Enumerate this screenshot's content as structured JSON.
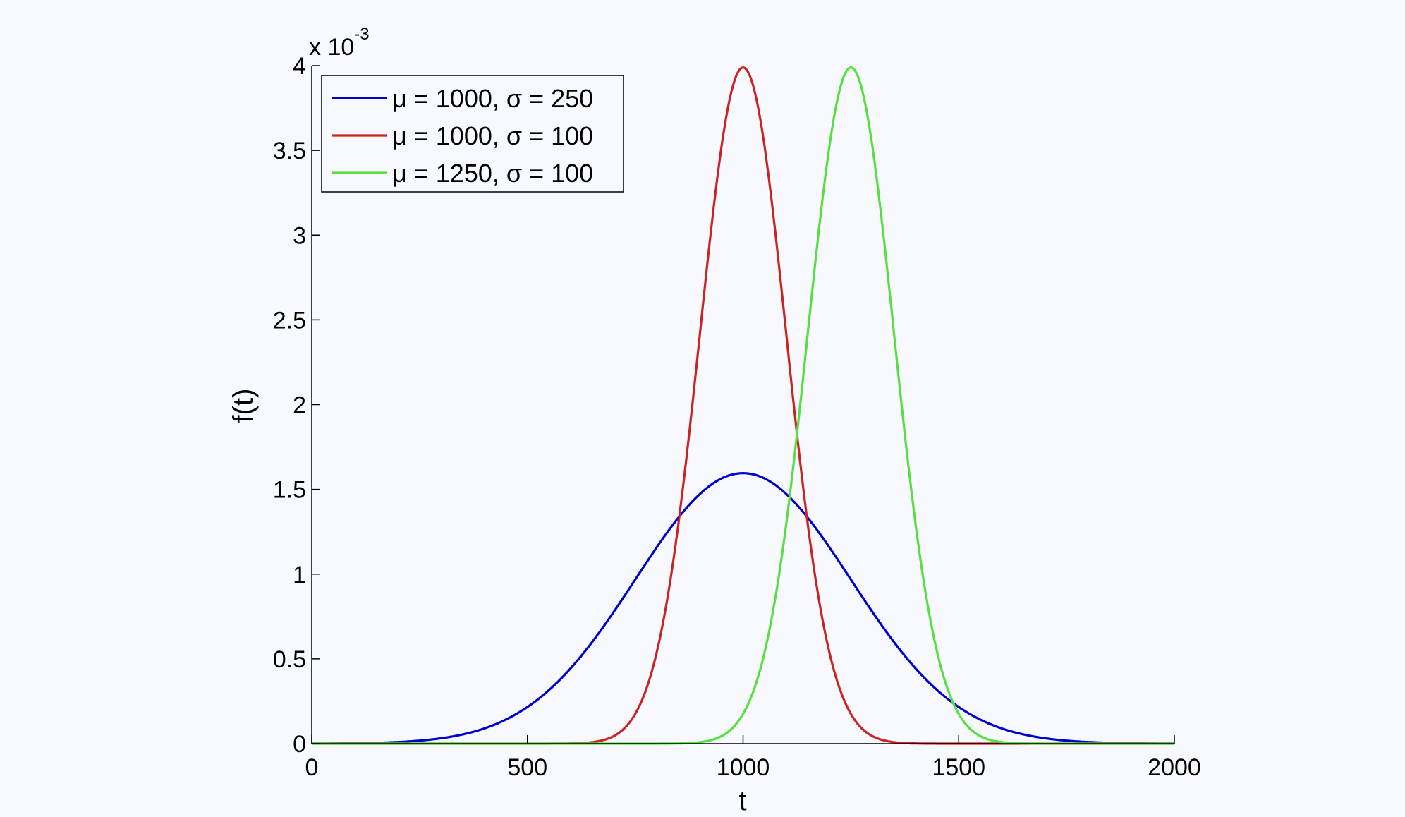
{
  "chart_data": {
    "type": "line",
    "title": "",
    "xlabel": "t",
    "ylabel": "f(t)",
    "y_multiplier_label": "x 10",
    "y_multiplier_exponent": "-3",
    "xlim": [
      0,
      2000
    ],
    "ylim": [
      0,
      0.004
    ],
    "grid": false,
    "legend_position": "top-left",
    "x_ticks": [
      "0",
      "500",
      "1000",
      "1500",
      "2000"
    ],
    "x_tick_values": [
      0,
      500,
      1000,
      1500,
      2000
    ],
    "y_ticks": [
      "0",
      "0.5",
      "1",
      "1.5",
      "2",
      "2.5",
      "3",
      "3.5",
      "4"
    ],
    "y_tick_values": [
      0,
      0.0005,
      0.001,
      0.0015,
      0.002,
      0.0025,
      0.003,
      0.0035,
      0.004
    ],
    "series": [
      {
        "name": "μ = 1000, σ = 250",
        "mu": 1000,
        "sigma": 250,
        "color": "#0000cc",
        "function": "normal pdf"
      },
      {
        "name": "μ = 1000, σ = 100",
        "mu": 1000,
        "sigma": 100,
        "color": "#cc2222",
        "function": "normal pdf"
      },
      {
        "name": "μ = 1250, σ = 100",
        "mu": 1250,
        "sigma": 100,
        "color": "#55e040",
        "function": "normal pdf"
      }
    ]
  }
}
